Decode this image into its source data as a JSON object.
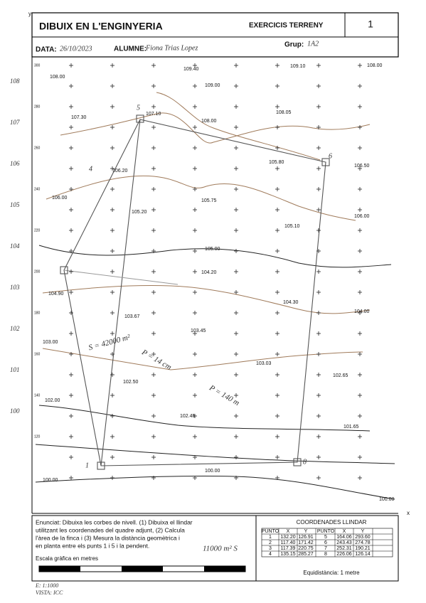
{
  "header": {
    "title": "DIBUIX EN L'ENGINYERIA",
    "exercise": "EXERCICIS TERRENY",
    "number": "1",
    "date_label": "DATA:",
    "date": "26/10/2023",
    "student_label": "ALUMNE:",
    "student": "Fiona Trias Lopez",
    "group_label": "Grup:",
    "group": "1A2"
  },
  "map": {
    "y_axis_label": "y",
    "x_axis_label": "x",
    "y_ticks": [
      "300",
      "280",
      "260",
      "240",
      "220",
      "200",
      "180",
      "160",
      "140",
      "120"
    ],
    "contour_labels": [
      "108",
      "107",
      "106",
      "105",
      "104",
      "103",
      "102",
      "101",
      "100"
    ],
    "spot_heights": [
      "108.00",
      "109.40",
      "109.10",
      "108.00",
      "109.00",
      "107.30",
      "107.10",
      "108.05",
      "108.00",
      "106.20",
      "105.80",
      "106.50",
      "106.00",
      "105.75",
      "105.20",
      "105.10",
      "106.00",
      "105.00",
      "104.20",
      "104.90",
      "104.30",
      "104.00",
      "103.67",
      "103.45",
      "103.00",
      "103.03",
      "102.65",
      "102.50",
      "102.00",
      "102.45",
      "101.65",
      "100.00",
      "100.00",
      "100.00"
    ],
    "point_labels": [
      "5",
      "4",
      "1",
      "8",
      "6"
    ],
    "notes": [
      "S = 42000 m²",
      "P = 14 cm",
      "P = 140 m",
      "11000 m² S"
    ]
  },
  "statement": [
    "Enunciat: Dibuixa les corbes de nivell. (1) Dibuixa el llindar",
    "utilitzant les coordenades del quadre adjunt, (2) Calcula",
    "l'àrea de la finca i (3) Mesura la distància geomètrica i",
    "en planta entre els punts 1 i 5 i la pendent."
  ],
  "scale_label": "Escala gràfica en metres",
  "coordinates": {
    "title": "COORDENADES LLINDAR",
    "headers": [
      "PUNTO",
      "X",
      "Y",
      "PUNTO",
      "X",
      "Y"
    ],
    "rows": [
      [
        "1",
        "132.20",
        "126.91",
        "5",
        "164.06",
        "293.60"
      ],
      [
        "2",
        "117.40",
        "171.42",
        "6",
        "243.43",
        "274.78"
      ],
      [
        "3",
        "117.39",
        "220.75",
        "7",
        "252.31",
        "190.21"
      ],
      [
        "4",
        "135.15",
        "285.27",
        "8",
        "226.06",
        "126.14"
      ]
    ]
  },
  "equidistance": "Equidistància: 1 metre",
  "footer": [
    "E: 1:1000",
    "VISTA: ICC"
  ]
}
